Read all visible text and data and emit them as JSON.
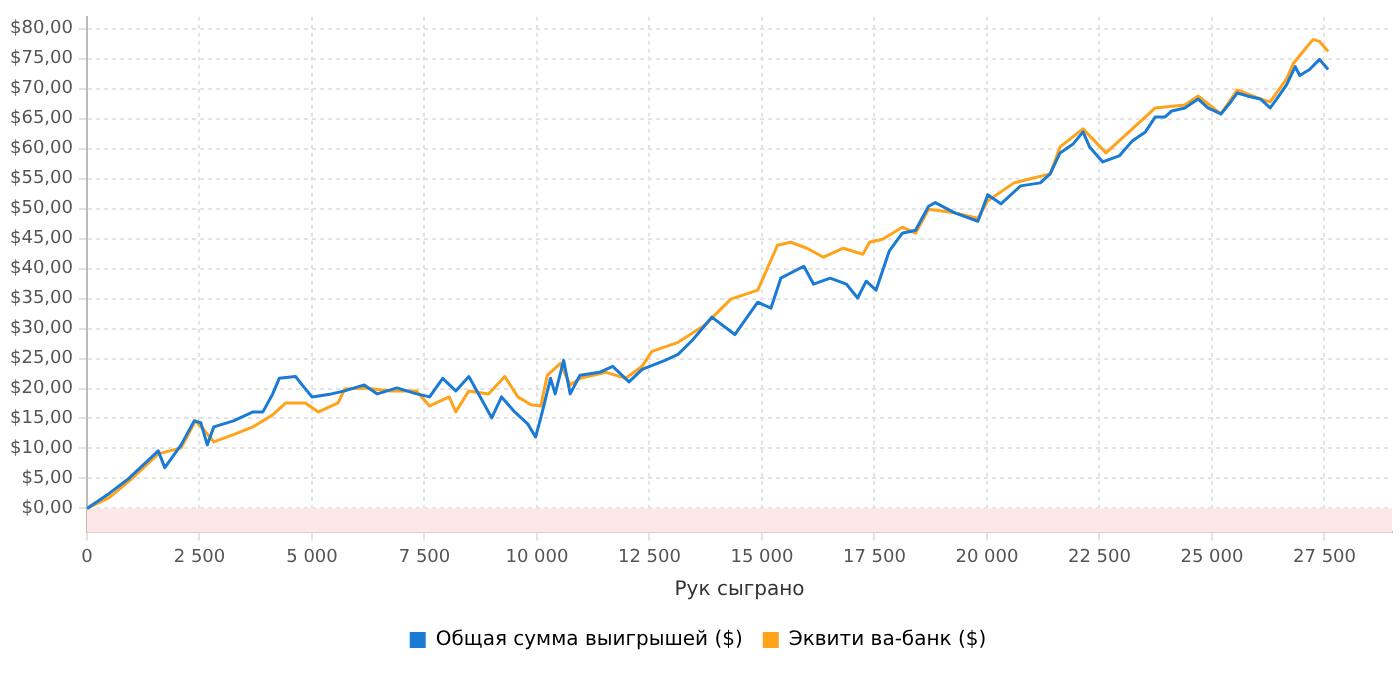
{
  "chart_data": {
    "type": "line",
    "xlabel": "Рук сыграно",
    "xlim": [
      0,
      29000
    ],
    "ylim": [
      -4,
      82
    ],
    "xticks": [
      0,
      {
        "value": 2500,
        "label": "2 500"
      },
      {
        "value": 5000,
        "label": "5 000"
      },
      {
        "value": 7500,
        "label": "7 500"
      },
      {
        "value": 10000,
        "label": "10 000"
      },
      {
        "value": 12500,
        "label": "12 500"
      },
      {
        "value": 15000,
        "label": "15 000"
      },
      {
        "value": 17500,
        "label": "17 500"
      },
      {
        "value": 20000,
        "label": "20 000"
      },
      {
        "value": 22500,
        "label": "22 500"
      },
      {
        "value": 25000,
        "label": "25 000"
      },
      {
        "value": 27500,
        "label": "27 500"
      }
    ],
    "yticks": [
      {
        "value": 0,
        "label": "$0,00"
      },
      {
        "value": 5,
        "label": "$5,00"
      },
      {
        "value": 10,
        "label": "$10,00"
      },
      {
        "value": 15,
        "label": "$15,00"
      },
      {
        "value": 20,
        "label": "$20,00"
      },
      {
        "value": 25,
        "label": "$25,00"
      },
      {
        "value": 30,
        "label": "$30,00"
      },
      {
        "value": 35,
        "label": "$35,00"
      },
      {
        "value": 40,
        "label": "$40,00"
      },
      {
        "value": 45,
        "label": "$45,00"
      },
      {
        "value": 50,
        "label": "$50,00"
      },
      {
        "value": 55,
        "label": "$55,00"
      },
      {
        "value": 60,
        "label": "$60,00"
      },
      {
        "value": 65,
        "label": "$65,00"
      },
      {
        "value": 70,
        "label": "$70,00"
      },
      {
        "value": 75,
        "label": "$75,00"
      },
      {
        "value": 80,
        "label": "$80,00"
      }
    ],
    "grid": true,
    "legend": "bottom",
    "marker": "none",
    "line_style": "solid",
    "bands": [
      {
        "axis": "y",
        "from": -4,
        "to": 0,
        "color": "#fde6e6"
      }
    ],
    "series": [
      {
        "name": "Общая сумма выигрышей ($)",
        "color": "#1a7ad4",
        "x": [
          0,
          494,
          930,
          1584,
          1729,
          2092,
          2383,
          2528,
          2673,
          2819,
          3255,
          3690,
          3909,
          4127,
          4272,
          4635,
          4780,
          4998,
          5434,
          5725,
          6161,
          6451,
          6887,
          7323,
          7614,
          7904,
          8195,
          8486,
          8776,
          8994,
          9212,
          9503,
          9794,
          9968,
          10084,
          10302,
          10404,
          10592,
          10738,
          10956,
          11392,
          11682,
          12045,
          12336,
          12845,
          13135,
          13447,
          13885,
          14396,
          14906,
          15199,
          15418,
          15929,
          16148,
          16513,
          16878,
          17126,
          17315,
          17534,
          17827,
          18119,
          18411,
          18703,
          18849,
          19285,
          19798,
          20017,
          20309,
          20747,
          21185,
          21404,
          21623,
          21915,
          22134,
          22280,
          22572,
          22937,
          23228,
          23520,
          23740,
          23959,
          24105,
          24397,
          24690,
          24909,
          25198,
          25417,
          25563,
          25781,
          26074,
          26293,
          26439,
          26660,
          26849,
          26950,
          27169,
          27389,
          27580
        ],
        "values": [
          0,
          2.5,
          5,
          9.6,
          6.8,
          10.6,
          14.6,
          14.3,
          10.6,
          13.6,
          14.6,
          16.1,
          16.1,
          19.1,
          21.7,
          22,
          20.6,
          18.6,
          19.1,
          19.6,
          20.6,
          19.1,
          20.1,
          19.1,
          18.6,
          21.7,
          19.6,
          22,
          18.1,
          15.1,
          18.6,
          16.1,
          14.1,
          11.9,
          15.1,
          21.7,
          19.1,
          24.7,
          19.1,
          22.2,
          22.7,
          23.7,
          21.1,
          23.2,
          24.7,
          25.7,
          28,
          31.9,
          29,
          34.4,
          33.4,
          38.4,
          40.4,
          37.4,
          38.4,
          37.4,
          35.1,
          37.9,
          36.4,
          42.9,
          45.9,
          46.4,
          50.4,
          51,
          49.3,
          47.9,
          52.3,
          50.8,
          53.8,
          54.3,
          55.8,
          59.3,
          60.8,
          62.8,
          60.3,
          57.8,
          58.8,
          61.3,
          62.8,
          65.3,
          65.3,
          66.3,
          66.8,
          68.3,
          66.8,
          65.8,
          67.8,
          69.3,
          68.8,
          68.3,
          66.8,
          68.3,
          70.7,
          73.7,
          72.2,
          73.2,
          74.9,
          73.2
        ]
      },
      {
        "name": "Эквити ва-банк ($)",
        "color": "#ffa31a",
        "x": [
          0,
          494,
          930,
          1584,
          2092,
          2412,
          2601,
          2819,
          3255,
          3690,
          4127,
          4417,
          4853,
          5144,
          5580,
          5725,
          6161,
          6742,
          7323,
          7614,
          8050,
          8195,
          8486,
          8922,
          9285,
          9575,
          9866,
          10084,
          10229,
          10520,
          10738,
          10956,
          11537,
          11973,
          12336,
          12554,
          13135,
          13716,
          14308,
          14906,
          15053,
          15345,
          15637,
          16002,
          16367,
          16805,
          17243,
          17389,
          17681,
          18119,
          18411,
          18703,
          19285,
          19798,
          20017,
          20601,
          21404,
          21623,
          22134,
          22645,
          23228,
          23740,
          24397,
          24690,
          25198,
          25563,
          26074,
          26293,
          26660,
          26806,
          27024,
          27243,
          27389,
          27580
        ],
        "values": [
          0,
          1.8,
          4.5,
          9.1,
          10.1,
          14.6,
          13.1,
          11.1,
          12.3,
          13.6,
          15.6,
          17.6,
          17.6,
          16.1,
          17.6,
          19.9,
          20.1,
          19.6,
          19.6,
          17.1,
          18.6,
          16.1,
          19.6,
          19.1,
          22,
          18.6,
          17.3,
          17.1,
          22.2,
          24.2,
          20.6,
          21.7,
          22.7,
          21.7,
          23.7,
          26.2,
          27.7,
          30.5,
          34.9,
          36.4,
          38.9,
          43.9,
          44.4,
          43.4,
          41.9,
          43.4,
          42.4,
          44.4,
          44.9,
          46.9,
          45.9,
          49.9,
          49.3,
          48.4,
          51.3,
          54.3,
          55.8,
          60.3,
          63.3,
          59.3,
          63.3,
          66.8,
          67.3,
          68.8,
          65.8,
          69.8,
          68.3,
          67.8,
          71.7,
          74.2,
          76.2,
          78.2,
          77.9,
          76.2
        ]
      }
    ]
  }
}
